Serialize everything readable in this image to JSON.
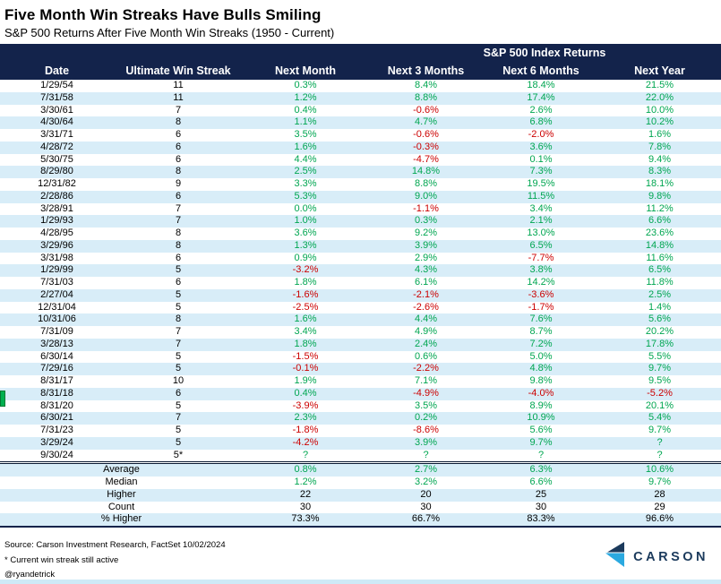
{
  "title": "Five Month Win Streaks Have Bulls Smiling",
  "subtitle": "S&P 500 Returns After Five Month Win Streaks (1950 - Current)",
  "colors": {
    "header_navy": "#13234B",
    "row_stripe_blue": "#D8EDF8",
    "positive_green": "#00A651",
    "negative_red": "#CC0000",
    "logo_light_blue": "#2BA9E0",
    "logo_dark_navy": "#1B3A5C"
  },
  "footer": {
    "source": "Source: Carson Investment Research, FactSet 10/02/2024",
    "note": "* Current win streak still active",
    "handle": "@ryandetrick",
    "brand": "CARSON"
  },
  "chart_data": {
    "type": "table",
    "title": "Five Month Win Streaks Have Bulls Smiling",
    "subtitle": "S&P 500 Returns After Five Month Win Streaks (1950 - Current)",
    "group_header": "S&P 500 Index Returns",
    "columns": [
      "Date",
      "Ultimate Win Streak",
      "Next Month",
      "Next 3 Months",
      "Next 6 Months",
      "Next Year"
    ],
    "rows": [
      [
        "1/29/54",
        "11",
        "0.3%",
        "8.4%",
        "18.4%",
        "21.5%"
      ],
      [
        "7/31/58",
        "11",
        "1.2%",
        "8.8%",
        "17.4%",
        "22.0%"
      ],
      [
        "3/30/61",
        "7",
        "0.4%",
        "-0.6%",
        "2.6%",
        "10.0%"
      ],
      [
        "4/30/64",
        "8",
        "1.1%",
        "4.7%",
        "6.8%",
        "10.2%"
      ],
      [
        "3/31/71",
        "6",
        "3.5%",
        "-0.6%",
        "-2.0%",
        "1.6%"
      ],
      [
        "4/28/72",
        "6",
        "1.6%",
        "-0.3%",
        "3.6%",
        "7.8%"
      ],
      [
        "5/30/75",
        "6",
        "4.4%",
        "-4.7%",
        "0.1%",
        "9.4%"
      ],
      [
        "8/29/80",
        "8",
        "2.5%",
        "14.8%",
        "7.3%",
        "8.3%"
      ],
      [
        "12/31/82",
        "9",
        "3.3%",
        "8.8%",
        "19.5%",
        "18.1%"
      ],
      [
        "2/28/86",
        "6",
        "5.3%",
        "9.0%",
        "11.5%",
        "9.8%"
      ],
      [
        "3/28/91",
        "7",
        "0.0%",
        "-1.1%",
        "3.4%",
        "11.2%"
      ],
      [
        "1/29/93",
        "7",
        "1.0%",
        "0.3%",
        "2.1%",
        "6.6%"
      ],
      [
        "4/28/95",
        "8",
        "3.6%",
        "9.2%",
        "13.0%",
        "23.6%"
      ],
      [
        "3/29/96",
        "8",
        "1.3%",
        "3.9%",
        "6.5%",
        "14.8%"
      ],
      [
        "3/31/98",
        "6",
        "0.9%",
        "2.9%",
        "-7.7%",
        "11.6%"
      ],
      [
        "1/29/99",
        "5",
        "-3.2%",
        "4.3%",
        "3.8%",
        "6.5%"
      ],
      [
        "7/31/03",
        "6",
        "1.8%",
        "6.1%",
        "14.2%",
        "11.8%"
      ],
      [
        "2/27/04",
        "5",
        "-1.6%",
        "-2.1%",
        "-3.6%",
        "2.5%"
      ],
      [
        "12/31/04",
        "5",
        "-2.5%",
        "-2.6%",
        "-1.7%",
        "1.4%"
      ],
      [
        "10/31/06",
        "8",
        "1.6%",
        "4.4%",
        "7.6%",
        "5.6%"
      ],
      [
        "7/31/09",
        "7",
        "3.4%",
        "4.9%",
        "8.7%",
        "20.2%"
      ],
      [
        "3/28/13",
        "7",
        "1.8%",
        "2.4%",
        "7.2%",
        "17.8%"
      ],
      [
        "6/30/14",
        "5",
        "-1.5%",
        "0.6%",
        "5.0%",
        "5.5%"
      ],
      [
        "7/29/16",
        "5",
        "-0.1%",
        "-2.2%",
        "4.8%",
        "9.7%"
      ],
      [
        "8/31/17",
        "10",
        "1.9%",
        "7.1%",
        "9.8%",
        "9.5%"
      ],
      [
        "8/31/18",
        "6",
        "0.4%",
        "-4.9%",
        "-4.0%",
        "-5.2%"
      ],
      [
        "8/31/20",
        "5",
        "-3.9%",
        "3.5%",
        "8.9%",
        "20.1%"
      ],
      [
        "6/30/21",
        "7",
        "2.3%",
        "0.2%",
        "10.9%",
        "5.4%"
      ],
      [
        "7/31/23",
        "5",
        "-1.8%",
        "-8.6%",
        "5.6%",
        "9.7%"
      ],
      [
        "3/29/24",
        "5",
        "-4.2%",
        "3.9%",
        "9.7%",
        "?"
      ],
      [
        "9/30/24",
        "5*",
        "?",
        "?",
        "?",
        "?"
      ]
    ],
    "summary_rows": [
      {
        "label": "Average",
        "values": [
          "0.8%",
          "2.7%",
          "6.3%",
          "10.6%"
        ],
        "color": "green"
      },
      {
        "label": "Median",
        "values": [
          "1.2%",
          "3.2%",
          "6.6%",
          "9.7%"
        ],
        "color": "green"
      },
      {
        "label": "Higher",
        "values": [
          "22",
          "20",
          "25",
          "28"
        ],
        "color": "black"
      },
      {
        "label": "Count",
        "values": [
          "30",
          "30",
          "30",
          "29"
        ],
        "color": "black"
      },
      {
        "label": "% Higher",
        "values": [
          "73.3%",
          "66.7%",
          "83.3%",
          "96.6%"
        ],
        "color": "black"
      }
    ]
  }
}
